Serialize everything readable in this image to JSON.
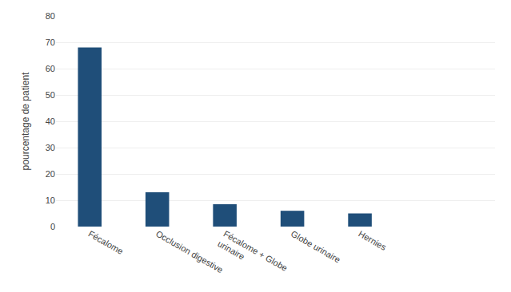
{
  "chart_data": {
    "type": "bar",
    "categories": [
      "Fécalome",
      "Occlusion digestive",
      "Fécalome + Globe\nurinaire",
      "Globe urinaire",
      "Hernies"
    ],
    "values": [
      68,
      13,
      8.5,
      6,
      5
    ],
    "color": "#1F4E79",
    "ylabel": "pourcentage de patient",
    "ylim": [
      0,
      80
    ],
    "yticks": [
      0,
      10,
      20,
      30,
      40,
      50,
      60,
      70,
      80
    ],
    "grid": true
  }
}
